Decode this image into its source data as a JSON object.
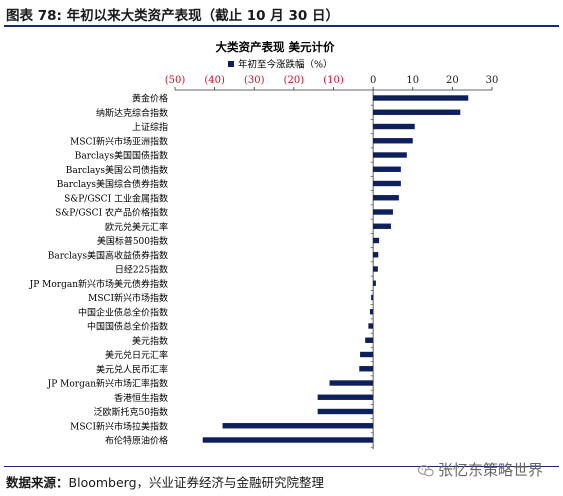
{
  "header": {
    "title": "图表 78: 年初以来大类资产表现（截止 10 月 30 日）"
  },
  "footer": {
    "source_label": "数据来源：",
    "source_text": "Bloomberg，兴业证券经济与金融研究院整理",
    "watermark": "张忆东策略世界"
  },
  "colors": {
    "bar": "#0f1f5c",
    "negative_tick": "#c8102e",
    "rule": "#1a2a6c"
  },
  "icons": {
    "watermark": "wechat-icon"
  },
  "chart_data": {
    "type": "bar",
    "orientation": "horizontal",
    "title": "大类资产表现  美元计价",
    "legend": "年初至今涨跌幅（%）",
    "legend_placement": "top-center",
    "xlim": [
      -50,
      30
    ],
    "xticks": [
      -50,
      -40,
      -30,
      -20,
      -10,
      0,
      10,
      20,
      30
    ],
    "xtick_labels": [
      "(50)",
      "(40)",
      "(30)",
      "(20)",
      "(10)",
      "0",
      "10",
      "20",
      "30"
    ],
    "xaxis_position": "top",
    "grid": false,
    "categories": [
      "黄金价格",
      "纳斯达克综合指数",
      "上证综指",
      "MSCI新兴市场亚洲指数",
      "Barclays美国国债指数",
      "Barclays美国公司债指数",
      "Barclays美国综合债券指数",
      "S&P/GSCI 工业金属指数",
      "S&P/GSCI 农产品价格指数",
      "欧元兑美元汇率",
      "美国标普500指数",
      "Barclays美国高收益债券指数",
      "日经225指数",
      "JP Morgan新兴市场美元债券指数",
      "MSCI新兴市场指数",
      "中国企业债总全价指数",
      "中国国债总全价指数",
      "美元指数",
      "美元兑日元汇率",
      "美元兑人民币汇率",
      "JP Morgan新兴市场汇率指数",
      "香港恒生指数",
      "泛欧斯托克50指数",
      "MSCI新兴市场拉美指数",
      "布伦特原油价格"
    ],
    "values": [
      24,
      22,
      10.5,
      10,
      8.5,
      7,
      7,
      6.5,
      5,
      4.5,
      1.5,
      1.3,
      1.2,
      0.7,
      -0.5,
      -0.8,
      -1.2,
      -2,
      -3.3,
      -3.5,
      -11,
      -14,
      -14,
      -38,
      -43
    ]
  }
}
